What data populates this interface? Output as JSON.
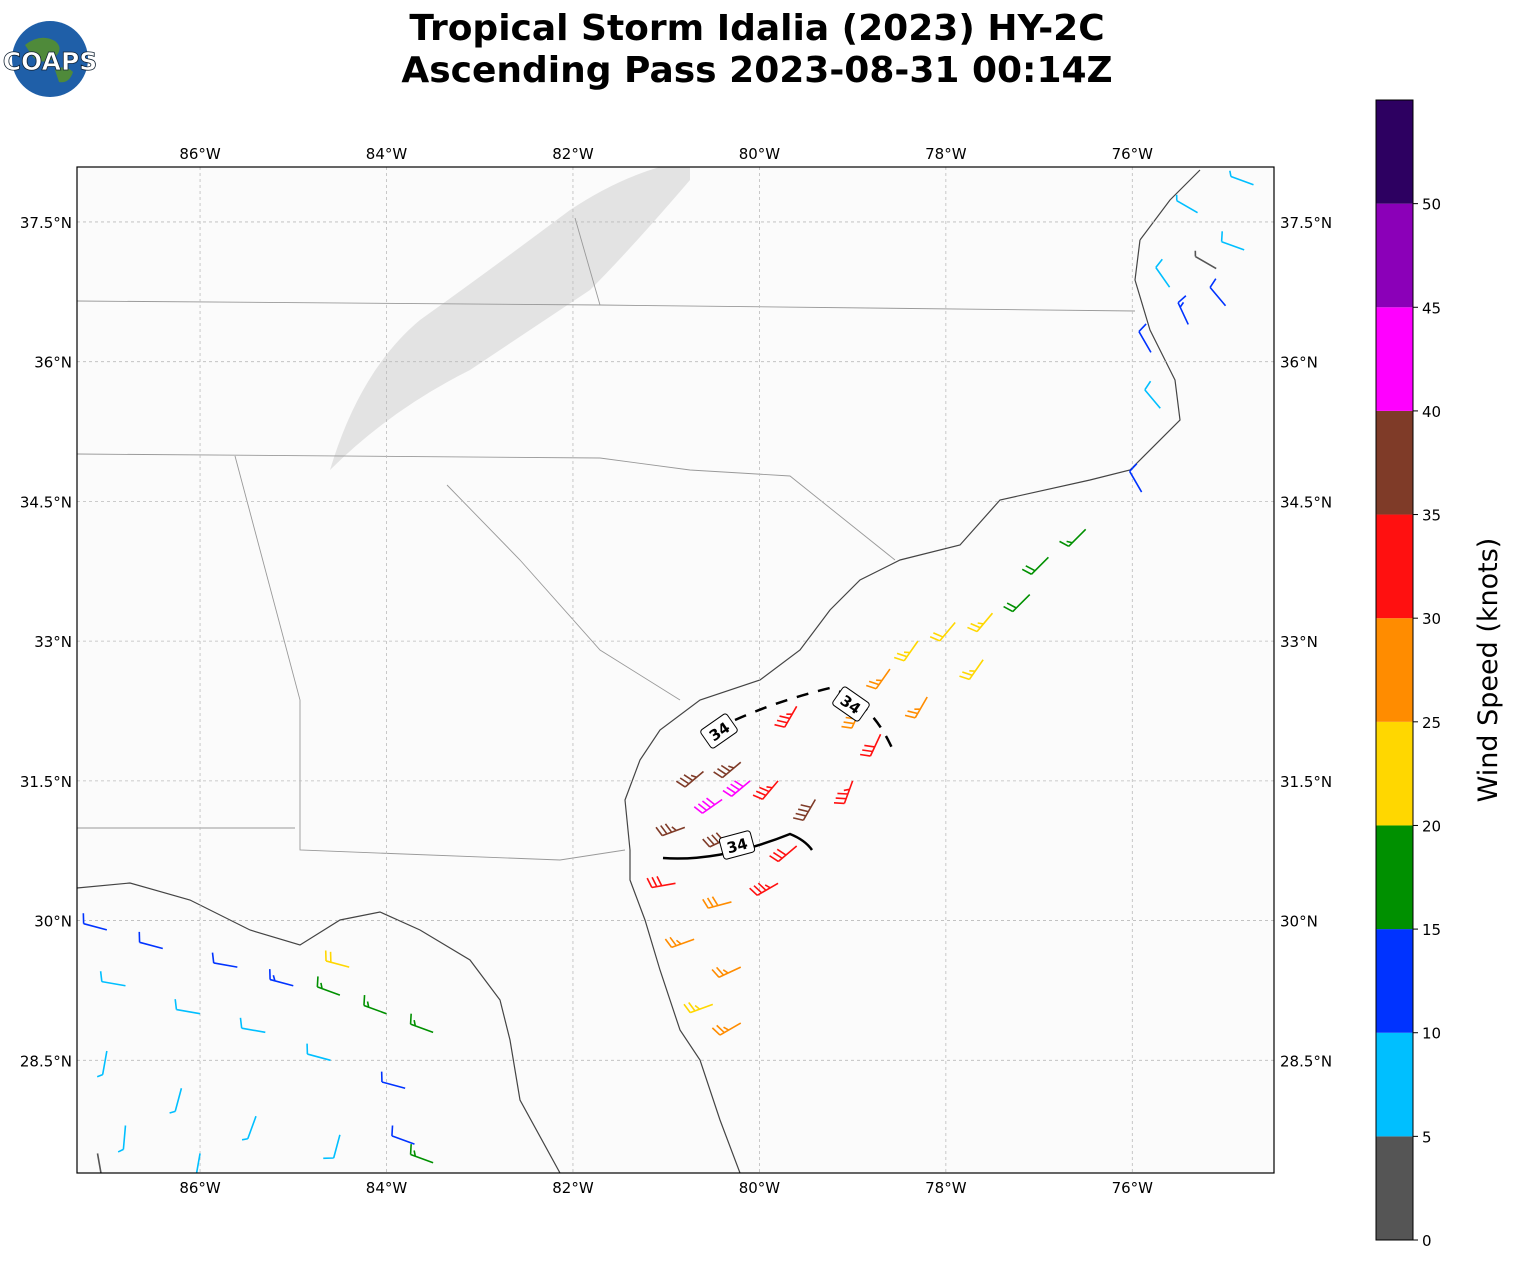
{
  "title": [
    "Tropical Storm Idalia (2023) HY-2C",
    "Ascending Pass 2023-08-31 00:14Z"
  ],
  "logo": "COAPS",
  "map": {
    "xlim": [
      -87.32,
      -74.48
    ],
    "ylim": [
      27.29,
      38.09
    ],
    "xticks": [
      {
        "value": -86,
        "label": "86°W"
      },
      {
        "value": -84,
        "label": "84°W"
      },
      {
        "value": -82,
        "label": "82°W"
      },
      {
        "value": -80,
        "label": "80°W"
      },
      {
        "value": -78,
        "label": "78°W"
      },
      {
        "value": -76,
        "label": "76°W"
      }
    ],
    "yticks": [
      {
        "value": 28.5,
        "label": "28.5°N"
      },
      {
        "value": 30,
        "label": "30°N"
      },
      {
        "value": 31.5,
        "label": "31.5°N"
      },
      {
        "value": 33,
        "label": "33°N"
      },
      {
        "value": 34.5,
        "label": "34.5°N"
      },
      {
        "value": 36,
        "label": "36°N"
      },
      {
        "value": 37.5,
        "label": "37.5°N"
      }
    ],
    "grid": true,
    "contour_labels": [
      "34",
      "34",
      "34"
    ],
    "barbs": {
      "lon": [
        -80.6,
        -80.2,
        -79.8,
        -79.4,
        -79.0,
        -80.4,
        -80.1,
        -80.8,
        -80.3,
        -79.6,
        -80.9,
        -80.3,
        -79.8,
        -80.7,
        -80.2,
        -80.5,
        -80.2,
        -79.6,
        -78.9,
        -78.6,
        -78.3,
        -77.9,
        -77.5,
        -77.1,
        -76.9,
        -76.5,
        -78.7,
        -78.2,
        -77.6,
        -75.9,
        -75.7,
        -75.8,
        -75.4,
        -75.0,
        -75.6,
        -75.1,
        -74.8,
        -75.3,
        -74.7,
        -87.0,
        -86.4,
        -85.6,
        -85.0,
        -84.5,
        -84.0,
        -83.5,
        -84.4,
        -86.8,
        -86.0,
        -85.3,
        -84.6,
        -83.8,
        -87.0,
        -86.2,
        -85.4,
        -84.5,
        -83.7,
        -86.8,
        -86.0,
        -83.5,
        -87.1
      ],
      "lat": [
        31.6,
        31.7,
        31.5,
        31.3,
        31.5,
        31.3,
        31.5,
        31.0,
        30.9,
        30.8,
        30.4,
        30.2,
        30.4,
        29.8,
        29.5,
        29.1,
        28.9,
        32.3,
        32.3,
        32.7,
        33.0,
        33.2,
        33.3,
        33.5,
        33.9,
        34.2,
        32.0,
        32.4,
        32.8,
        34.6,
        35.5,
        36.1,
        36.4,
        36.6,
        36.8,
        37.0,
        37.2,
        37.6,
        37.9,
        29.9,
        29.7,
        29.5,
        29.3,
        29.2,
        29.0,
        28.8,
        29.5,
        29.3,
        29.0,
        28.8,
        28.5,
        28.2,
        28.6,
        28.2,
        27.9,
        27.7,
        27.6,
        27.8,
        27.5,
        27.4,
        27.5
      ],
      "speed": [
        37,
        36,
        33,
        38,
        33,
        42,
        42,
        37,
        38,
        32,
        32,
        28,
        33,
        27,
        27,
        23,
        27,
        33,
        28,
        27,
        23,
        22,
        24,
        18,
        18,
        17,
        30,
        27,
        23,
        12,
        8,
        12,
        13,
        12,
        8,
        4,
        8,
        7,
        7,
        12,
        12,
        11,
        13,
        17,
        17,
        17,
        22,
        8,
        8,
        8,
        8,
        12,
        7,
        7,
        7,
        8,
        12,
        6,
        7,
        17,
        3
      ],
      "direction": [
        230,
        230,
        220,
        210,
        200,
        235,
        230,
        250,
        245,
        230,
        260,
        255,
        240,
        250,
        245,
        250,
        240,
        210,
        205,
        215,
        215,
        220,
        220,
        225,
        225,
        225,
        205,
        210,
        215,
        330,
        320,
        330,
        335,
        320,
        325,
        300,
        290,
        300,
        290,
        285,
        285,
        280,
        285,
        290,
        290,
        290,
        285,
        280,
        280,
        280,
        285,
        285,
        190,
        195,
        200,
        195,
        290,
        185,
        190,
        290,
        170
      ]
    }
  },
  "colorbar": {
    "label": "Wind Speed (knots)",
    "lim": [
      0,
      55
    ],
    "ticks": [
      0,
      5,
      10,
      15,
      20,
      25,
      30,
      35,
      40,
      45,
      50
    ],
    "colors": [
      "#555555",
      "#00bfff",
      "#0033ff",
      "#009000",
      "#ffd700",
      "#ff8c00",
      "#ff1010",
      "#7f3b28",
      "#ff00ff",
      "#8b00b8",
      "#2d0061"
    ]
  }
}
